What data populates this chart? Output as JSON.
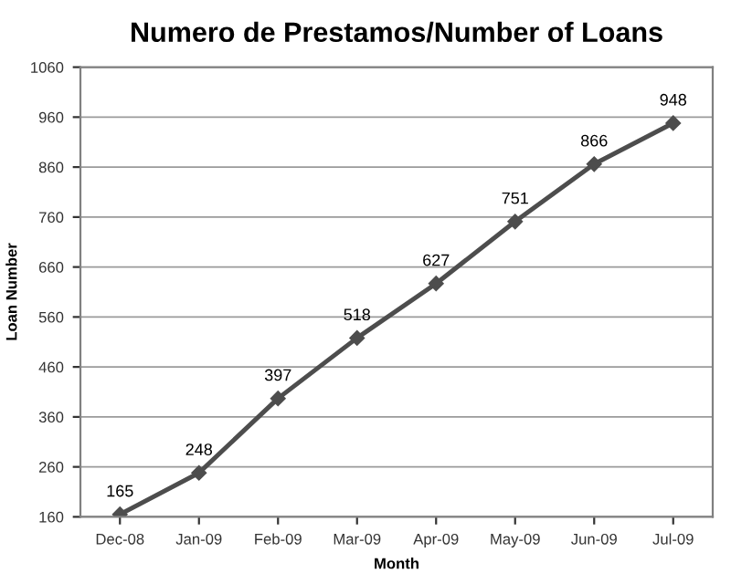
{
  "chart_data": {
    "type": "line",
    "title": "Numero de Prestamos/Number of Loans",
    "xlabel": "Month",
    "ylabel": "Loan Number",
    "categories": [
      "Dec-08",
      "Jan-09",
      "Feb-09",
      "Mar-09",
      "Apr-09",
      "May-09",
      "Jun-09",
      "Jul-09"
    ],
    "series": [
      {
        "color": "#4d4d4d",
        "values": [
          165,
          248,
          397,
          518,
          627,
          751,
          866,
          948
        ]
      }
    ],
    "ylim": [
      160,
      1060
    ],
    "yticks": [
      160,
      260,
      360,
      460,
      560,
      660,
      760,
      860,
      960,
      1060
    ],
    "grid": "y",
    "marker": "diamond",
    "line_style": "solid",
    "data_labels": true,
    "legend": false
  }
}
